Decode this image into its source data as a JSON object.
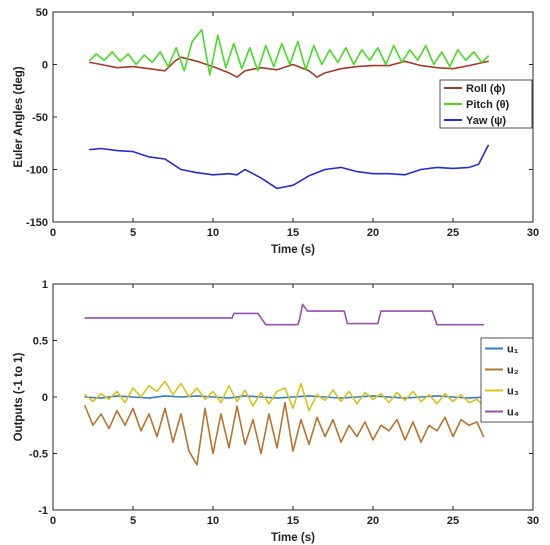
{
  "chart_data": [
    {
      "type": "line",
      "xlabel": "Time (s)",
      "ylabel": "Euler Angles (deg)",
      "xlim": [
        0,
        30
      ],
      "ylim": [
        -150,
        50
      ],
      "xticks": [
        "0",
        "5",
        "10",
        "15",
        "20",
        "25",
        "30"
      ],
      "yticks": [
        "50",
        "0",
        "-50",
        "-100",
        "-150"
      ],
      "grid": false,
      "legend_position": "right",
      "series": [
        {
          "name": "Roll (ϕ)",
          "color": "#a83a2a",
          "x": [
            2.3,
            3,
            4,
            5,
            6,
            7,
            7.6,
            8,
            9,
            10,
            11,
            11.5,
            12,
            13,
            14,
            15,
            16,
            16.5,
            17,
            18,
            19,
            20,
            21,
            22,
            23,
            24,
            25,
            26,
            27.2
          ],
          "y": [
            2,
            0,
            -3,
            -2,
            -4,
            -6,
            3,
            7,
            3,
            -2,
            -8,
            -12,
            -6,
            -3,
            -5,
            0,
            -6,
            -12,
            -8,
            -4,
            -2,
            -1,
            -1,
            3,
            -1,
            -3,
            -4,
            -1,
            3
          ]
        },
        {
          "name": "Pitch (θ)",
          "color": "#44dd22",
          "x": [
            2.3,
            2.7,
            3.2,
            3.7,
            4.2,
            4.7,
            5.2,
            5.7,
            6.2,
            6.7,
            7.2,
            7.7,
            8.2,
            8.7,
            9.3,
            9.8,
            10.3,
            10.8,
            11.3,
            11.8,
            12.3,
            12.8,
            13.3,
            13.8,
            14.3,
            14.8,
            15.3,
            15.8,
            16.3,
            16.8,
            17.3,
            17.8,
            18.3,
            18.8,
            19.3,
            19.8,
            20.3,
            20.8,
            21.3,
            21.8,
            22.3,
            22.8,
            23.3,
            23.8,
            24.3,
            24.8,
            25.3,
            25.8,
            26.3,
            26.8,
            27.2
          ],
          "y": [
            4,
            10,
            4,
            12,
            3,
            10,
            0,
            9,
            2,
            12,
            -2,
            16,
            -6,
            22,
            33,
            -10,
            28,
            -3,
            20,
            -4,
            16,
            -6,
            18,
            -2,
            20,
            0,
            22,
            -5,
            18,
            0,
            14,
            2,
            16,
            0,
            14,
            4,
            16,
            0,
            18,
            2,
            14,
            4,
            18,
            0,
            12,
            -2,
            14,
            4,
            12,
            2,
            8
          ]
        },
        {
          "name": "Yaw (ψ)",
          "color": "#2a2ad2",
          "x": [
            2.3,
            3,
            4,
            5,
            6,
            7,
            7.5,
            8,
            9,
            10,
            11,
            11.5,
            12,
            12.5,
            13,
            14,
            15,
            16,
            17,
            18,
            19,
            20,
            21,
            22,
            23,
            24,
            25,
            26,
            26.6,
            27.2
          ],
          "y": [
            -81,
            -80,
            -82,
            -83,
            -88,
            -90,
            -95,
            -100,
            -103,
            -105,
            -104,
            -105,
            -100,
            -104,
            -108,
            -118,
            -115,
            -106,
            -100,
            -98,
            -102,
            -104,
            -104,
            -105,
            -100,
            -98,
            -99,
            -98,
            -95,
            -77
          ]
        }
      ]
    },
    {
      "type": "line",
      "xlabel": "Time (s)",
      "ylabel": "Outputs (-1 to 1)",
      "xlim": [
        0,
        30
      ],
      "ylim": [
        -1,
        1
      ],
      "xticks": [
        "0",
        "5",
        "10",
        "15",
        "20",
        "25",
        "30"
      ],
      "yticks": [
        "1",
        "0.5",
        "0",
        "-0.5",
        "-1"
      ],
      "grid": false,
      "legend_position": "right",
      "series": [
        {
          "name": "u1",
          "color": "#2e7ec8",
          "x": [
            2,
            3,
            4,
            5,
            6,
            7,
            8,
            9,
            10,
            11,
            12,
            13,
            14,
            15,
            16,
            17,
            18,
            19,
            20,
            21,
            22,
            23,
            24,
            25,
            26,
            27
          ],
          "y": [
            0,
            -0.01,
            0.01,
            0,
            -0.01,
            0.01,
            0,
            0.01,
            0,
            -0.01,
            0.01,
            0,
            -0.01,
            0,
            0.01,
            0,
            -0.01,
            0,
            0.01,
            0,
            -0.01,
            0,
            0.01,
            0,
            -0.01,
            0
          ]
        },
        {
          "name": "u2",
          "color": "#b8732e",
          "x": [
            2,
            2.5,
            3,
            3.5,
            4,
            4.5,
            5,
            5.5,
            6,
            6.5,
            7,
            7.5,
            8,
            8.5,
            9,
            9.5,
            10,
            10.5,
            11,
            11.5,
            12,
            12.5,
            13,
            13.5,
            14,
            14.5,
            15,
            15.5,
            16,
            16.5,
            17,
            17.5,
            18,
            18.5,
            19,
            19.5,
            20,
            20.5,
            21,
            21.5,
            22,
            22.5,
            23,
            23.5,
            24,
            24.5,
            25,
            25.5,
            26,
            26.5,
            26.9
          ],
          "y": [
            -0.08,
            -0.25,
            -0.15,
            -0.28,
            -0.12,
            -0.25,
            -0.1,
            -0.3,
            -0.15,
            -0.35,
            -0.1,
            -0.4,
            -0.15,
            -0.48,
            -0.6,
            -0.1,
            -0.5,
            -0.15,
            -0.45,
            -0.08,
            -0.42,
            -0.2,
            -0.5,
            -0.15,
            -0.45,
            -0.05,
            -0.48,
            -0.2,
            -0.42,
            -0.18,
            -0.35,
            -0.2,
            -0.4,
            -0.25,
            -0.35,
            -0.22,
            -0.38,
            -0.25,
            -0.3,
            -0.2,
            -0.38,
            -0.22,
            -0.4,
            -0.25,
            -0.3,
            -0.18,
            -0.35,
            -0.2,
            -0.25,
            -0.22,
            -0.35
          ]
        },
        {
          "name": "u3",
          "color": "#d9c21a",
          "x": [
            2,
            2.5,
            3,
            3.5,
            4,
            4.5,
            5,
            5.5,
            6,
            6.5,
            7,
            7.5,
            8,
            8.5,
            9,
            9.5,
            10,
            10.5,
            11,
            11.5,
            12,
            12.5,
            13,
            13.5,
            14,
            14.5,
            15,
            15.5,
            16,
            16.5,
            17,
            17.5,
            18,
            18.5,
            19,
            19.5,
            20,
            20.5,
            21,
            21.5,
            22,
            22.5,
            23,
            23.5,
            24,
            24.5,
            25,
            25.5,
            26,
            26.5,
            26.9
          ],
          "y": [
            0.02,
            -0.04,
            0.03,
            -0.02,
            0.05,
            -0.05,
            0.08,
            0,
            0.1,
            0.05,
            0.14,
            0.02,
            0.12,
            0,
            0.08,
            -0.02,
            0.05,
            -0.05,
            0.1,
            -0.04,
            0.06,
            -0.08,
            0.04,
            -0.06,
            0.05,
            0.08,
            -0.1,
            0.12,
            -0.12,
            0.02,
            -0.03,
            0.06,
            -0.04,
            0.05,
            -0.06,
            0.04,
            -0.02,
            0.03,
            -0.05,
            0.04,
            -0.03,
            0.05,
            -0.04,
            0.02,
            -0.06,
            0.03,
            -0.04,
            0.02,
            -0.05,
            -0.02,
            -0.08
          ]
        },
        {
          "name": "u4",
          "color": "#9b4db0",
          "x": [
            2,
            11.2,
            11.3,
            12.8,
            13.3,
            15.3,
            15.4,
            15.6,
            15.9,
            18.2,
            18.4,
            20.3,
            20.5,
            23.7,
            24,
            26.9
          ],
          "y": [
            0.7,
            0.7,
            0.74,
            0.74,
            0.64,
            0.64,
            0.68,
            0.82,
            0.76,
            0.76,
            0.65,
            0.65,
            0.76,
            0.76,
            0.64,
            0.64
          ]
        }
      ]
    }
  ]
}
